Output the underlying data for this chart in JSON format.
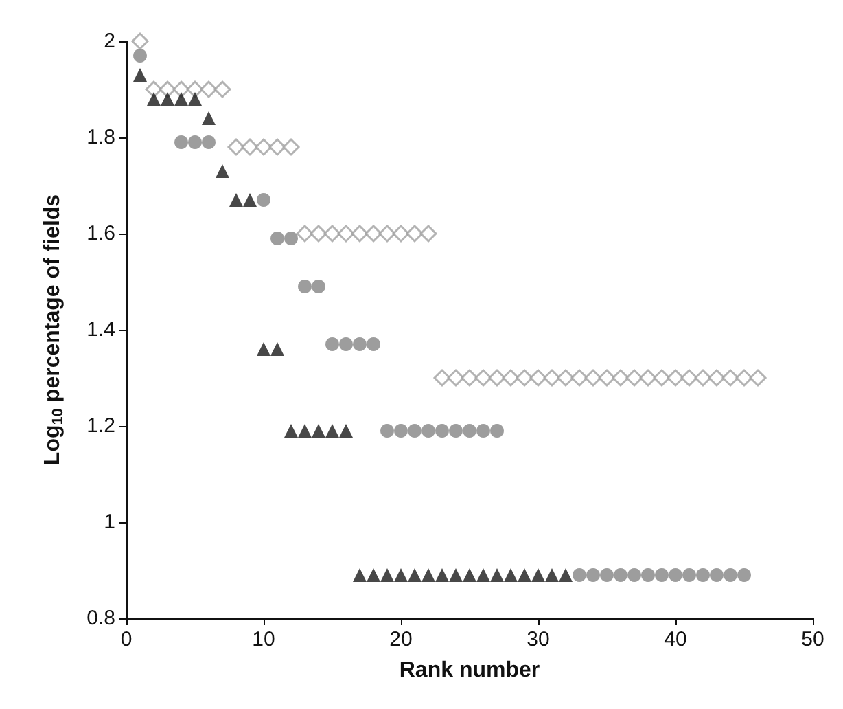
{
  "chart_data": {
    "type": "scatter",
    "xlabel": "Rank number",
    "ylabel": "Log$_{10}$ percentage of fields",
    "xlim": [
      0,
      50
    ],
    "xticks": [
      0,
      10,
      20,
      30,
      40,
      50
    ],
    "ylim": [
      0.8,
      2
    ],
    "yticks": [
      0.8,
      1,
      1.2,
      1.4,
      1.6,
      1.8,
      2
    ],
    "grid": false,
    "series": [
      {
        "color": "#a0a0a0",
        "marker": "diamond",
        "x": [
          1,
          2,
          3,
          4,
          5,
          6,
          7,
          8,
          9,
          10,
          11,
          12,
          13,
          14,
          15,
          16,
          17,
          18,
          19,
          20,
          21,
          22,
          23,
          24,
          25,
          26,
          27,
          28,
          29,
          30,
          31,
          32,
          33,
          34,
          35,
          36,
          37,
          38,
          39,
          40,
          41,
          42,
          43,
          44,
          45,
          46
        ],
        "values": [
          2.0,
          1.9,
          1.9,
          1.9,
          1.9,
          1.9,
          1.9,
          1.78,
          1.78,
          1.78,
          1.78,
          1.78,
          1.6,
          1.6,
          1.6,
          1.6,
          1.6,
          1.6,
          1.6,
          1.6,
          1.6,
          1.6,
          1.3,
          1.3,
          1.3,
          1.3,
          1.3,
          1.3,
          1.3,
          1.3,
          1.3,
          1.3,
          1.3,
          1.3,
          1.3,
          1.3,
          1.3,
          1.3,
          1.3,
          1.3,
          1.3,
          1.3,
          1.3,
          1.3,
          1.3,
          1.3
        ]
      },
      {
        "color": "#858585",
        "marker": "circle",
        "x": [
          1,
          4,
          5,
          6,
          10,
          11,
          12,
          13,
          14,
          15,
          16,
          17,
          18,
          19,
          20,
          21,
          22,
          23,
          24,
          25,
          26,
          27,
          33,
          34,
          35,
          36,
          37,
          38,
          39,
          40,
          41,
          42,
          43,
          44,
          45
        ],
        "values": [
          1.97,
          1.79,
          1.79,
          1.79,
          1.67,
          1.59,
          1.59,
          1.49,
          1.49,
          1.37,
          1.37,
          1.37,
          1.37,
          1.19,
          1.19,
          1.19,
          1.19,
          1.19,
          1.19,
          1.19,
          1.19,
          1.19,
          0.89,
          0.89,
          0.89,
          0.89,
          0.89,
          0.89,
          0.89,
          0.89,
          0.89,
          0.89,
          0.89,
          0.89,
          0.89
        ]
      },
      {
        "color": "#1a1a1a",
        "marker": "triangle",
        "x": [
          1,
          2,
          3,
          4,
          5,
          6,
          7,
          8,
          9,
          10,
          11,
          12,
          13,
          14,
          15,
          16,
          17,
          18,
          19,
          20,
          21,
          22,
          23,
          24,
          25,
          26,
          27,
          28,
          29,
          30,
          31,
          32
        ],
        "values": [
          1.93,
          1.88,
          1.88,
          1.88,
          1.88,
          1.84,
          1.73,
          1.67,
          1.67,
          1.36,
          1.36,
          1.19,
          1.19,
          1.19,
          1.19,
          1.19,
          0.89,
          0.89,
          0.89,
          0.89,
          0.89,
          0.89,
          0.89,
          0.89,
          0.89,
          0.89,
          0.89,
          0.89,
          0.89,
          0.89,
          0.89,
          0.89
        ]
      }
    ]
  }
}
